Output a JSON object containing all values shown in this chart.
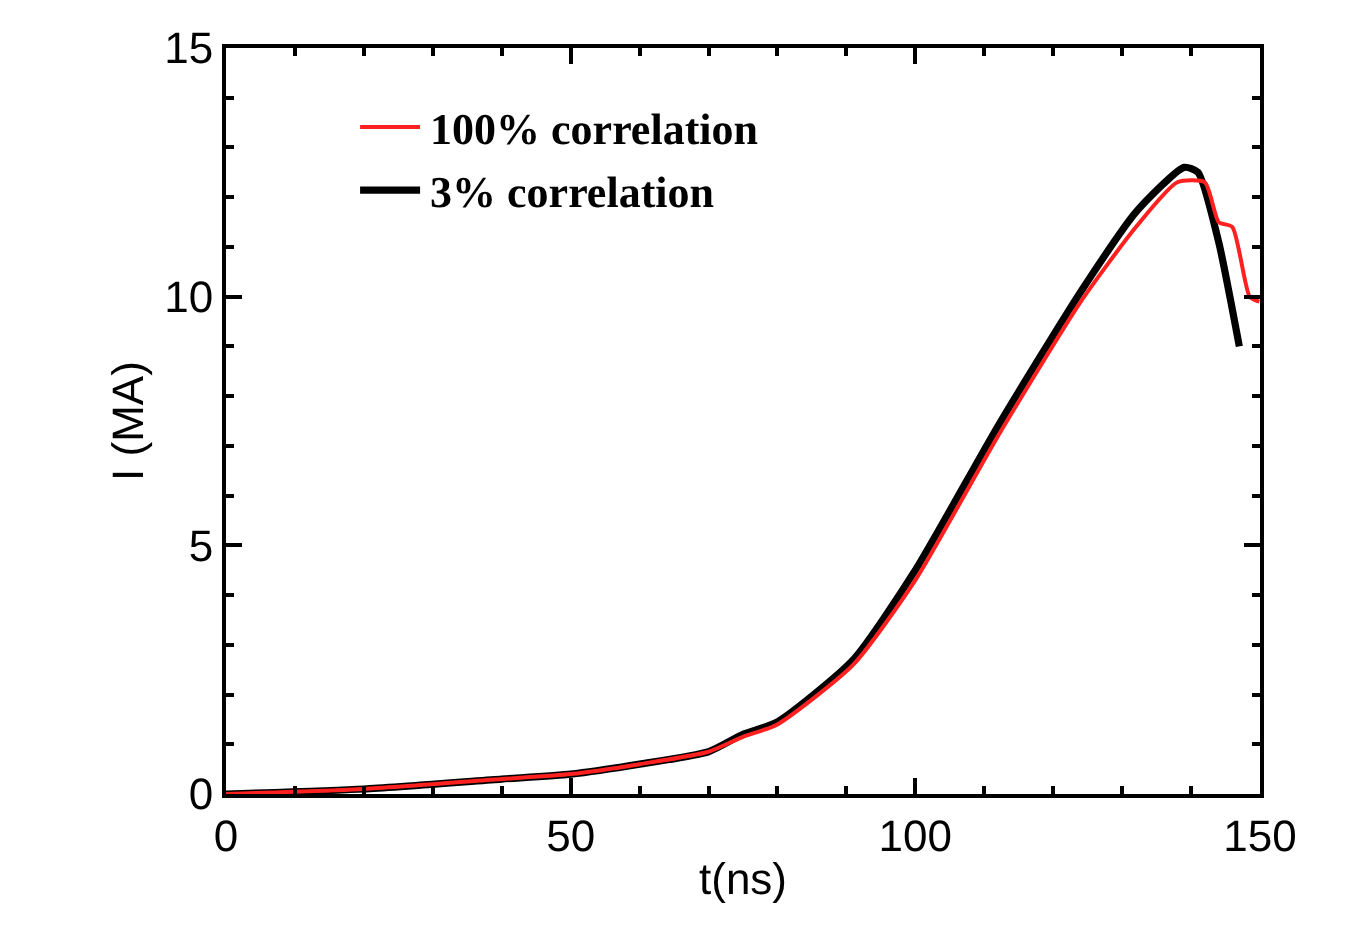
{
  "chart_data": {
    "type": "line",
    "xlabel": "t(ns)",
    "ylabel": "I (MA)",
    "xlim": [
      0,
      150
    ],
    "xticks": [
      0,
      50,
      100,
      150
    ],
    "ylim": [
      0,
      15
    ],
    "yticks": [
      0,
      5,
      10,
      15
    ],
    "legend": "top left",
    "marker": "none",
    "line_style": "solid",
    "series": [
      {
        "name": "100% correlation",
        "color": "#ff2020",
        "x": [
          0,
          20,
          40,
          50,
          60,
          70,
          75,
          80,
          91,
          100,
          112,
          124,
          132,
          138,
          142,
          144,
          146,
          148.5,
          149.9
        ],
        "values": [
          0,
          0.1,
          0.3,
          0.4,
          0.6,
          0.85,
          1.15,
          1.4,
          2.6,
          4.3,
          7.2,
          9.9,
          11.4,
          12.3,
          12.3,
          11.5,
          11.4,
          10.0,
          9.9
        ]
      },
      {
        "name": "3% correlation",
        "color": "#000000",
        "x": [
          0,
          20,
          40,
          50,
          60,
          70,
          75,
          80,
          91,
          100,
          112,
          124,
          132,
          139,
          141,
          144,
          147
        ],
        "values": [
          0,
          0.1,
          0.3,
          0.4,
          0.6,
          0.85,
          1.2,
          1.45,
          2.7,
          4.5,
          7.4,
          10.1,
          11.7,
          12.6,
          12.5,
          11.1,
          9.0
        ]
      }
    ]
  }
}
